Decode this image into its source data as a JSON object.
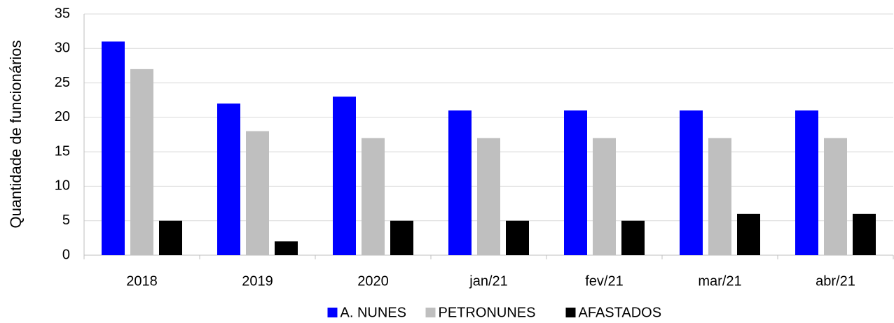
{
  "chart_data": {
    "type": "bar",
    "y_label": "Quantidade de funcionários",
    "categories": [
      "2018",
      "2019",
      "2020",
      "jan/21",
      "fev/21",
      "mar/21",
      "abr/21"
    ],
    "series": [
      {
        "name": "A. NUNES",
        "color": "#0000ff",
        "values": [
          31,
          22,
          23,
          21,
          21,
          21,
          21
        ]
      },
      {
        "name": "PETRONUNES",
        "color": "#bfbfbf",
        "values": [
          27,
          18,
          17,
          17,
          17,
          17,
          17
        ]
      },
      {
        "name": "AFASTADOS",
        "color": "#000000",
        "values": [
          5,
          2,
          5,
          5,
          5,
          6,
          6
        ]
      }
    ],
    "ylim": [
      0,
      35
    ],
    "yticks": [
      0,
      5,
      10,
      15,
      20,
      25,
      30,
      35
    ],
    "grid": true,
    "legend": "bottom"
  }
}
